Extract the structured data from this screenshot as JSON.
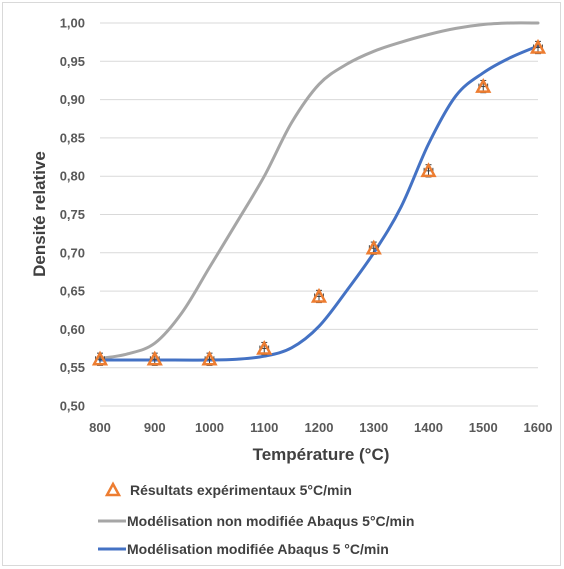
{
  "chart_data": {
    "type": "scatter",
    "title": "",
    "xlabel": "Température (°C)",
    "ylabel": "Densité relative",
    "xlim": [
      800,
      1600
    ],
    "ylim": [
      0.5,
      1.0
    ],
    "x_ticks": [
      "800",
      "900",
      "1000",
      "1100",
      "1200",
      "1300",
      "1400",
      "1500",
      "1600"
    ],
    "y_ticks": [
      "0,50",
      "0,55",
      "0,60",
      "0,65",
      "0,70",
      "0,75",
      "0,80",
      "0,85",
      "0,90",
      "0,95",
      "1,00"
    ],
    "grid": "horizontal",
    "legend_position": "bottom",
    "series": [
      {
        "name": "Résultats expérimentaux 5°C/min",
        "kind": "markers",
        "marker": "triangle",
        "color": "#ed7d31",
        "x": [
          800,
          900,
          1000,
          1100,
          1200,
          1300,
          1400,
          1500,
          1600
        ],
        "y": [
          0.561,
          0.561,
          0.561,
          0.575,
          0.643,
          0.706,
          0.807,
          0.917,
          0.968
        ],
        "x_error": 8,
        "y_error": 0.008
      },
      {
        "name": "Modélisation non modifiée Abaqus 5°C/min",
        "kind": "line",
        "color": "#a6a6a6",
        "x": [
          800,
          850,
          900,
          950,
          1000,
          1050,
          1100,
          1150,
          1200,
          1250,
          1300,
          1350,
          1400,
          1450,
          1500,
          1550,
          1600
        ],
        "y": [
          0.562,
          0.568,
          0.582,
          0.622,
          0.681,
          0.74,
          0.8,
          0.87,
          0.92,
          0.946,
          0.963,
          0.975,
          0.985,
          0.993,
          0.998,
          1.0,
          1.0
        ]
      },
      {
        "name": "Modélisation  modifiée Abaqus 5 °C/min",
        "kind": "line",
        "color": "#4472c4",
        "x": [
          800,
          900,
          1000,
          1050,
          1100,
          1150,
          1200,
          1250,
          1300,
          1350,
          1400,
          1450,
          1500,
          1550,
          1600
        ],
        "y": [
          0.56,
          0.56,
          0.56,
          0.561,
          0.565,
          0.576,
          0.604,
          0.65,
          0.7,
          0.76,
          0.842,
          0.905,
          0.935,
          0.955,
          0.97
        ]
      }
    ]
  }
}
